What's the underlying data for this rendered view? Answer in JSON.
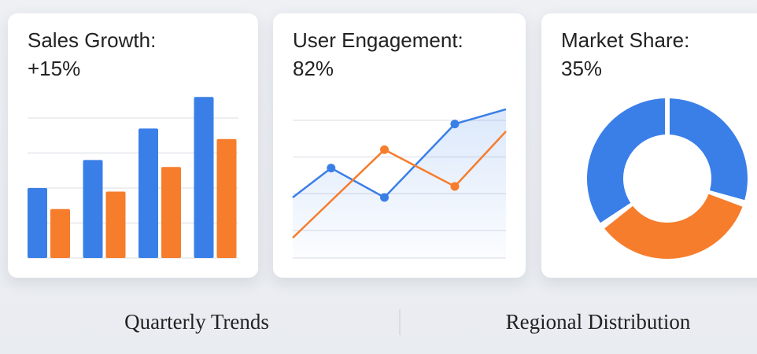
{
  "chart_data": [
    {
      "type": "bar",
      "title": "Sales Growth:",
      "subtitle": "+15%",
      "categories": [
        null,
        null,
        null,
        null
      ],
      "series": [
        {
          "color": "#3a7fe8",
          "values": [
            2,
            2.8,
            3.7,
            4.6
          ]
        },
        {
          "color": "#f67d2c",
          "values": [
            1.4,
            1.9,
            2.6,
            3.4
          ]
        }
      ],
      "ylim": [
        0,
        5
      ],
      "yticks": [
        0,
        1,
        2,
        3,
        4
      ],
      "grid": true
    },
    {
      "type": "line",
      "title": "User Engagement:",
      "subtitle": "82%",
      "series": [
        {
          "color": "#3a7fe8",
          "x": [
            0,
            1.8,
            4.3,
            7.6,
            10
          ],
          "values": [
            0.9,
            1.7,
            0.9,
            2.9,
            3.3
          ]
        },
        {
          "color": "#f67d2c",
          "x": [
            0,
            4.3,
            7.6,
            10
          ],
          "values": [
            -0.2,
            2.2,
            1.2,
            2.7
          ]
        }
      ],
      "xlim": [
        0,
        10
      ],
      "ylim": [
        -0.75,
        3.5
      ],
      "yticks": [
        0,
        1,
        2,
        3
      ],
      "grid": true
    },
    {
      "type": "pie",
      "title": "Market Share:",
      "subtitle": "35%",
      "values": [
        65,
        35
      ],
      "colors": [
        "#3a7fe8",
        "#f67d2c"
      ],
      "donut": true
    }
  ],
  "captions": [
    "Quarterly Trends",
    "Regional Distribution"
  ]
}
